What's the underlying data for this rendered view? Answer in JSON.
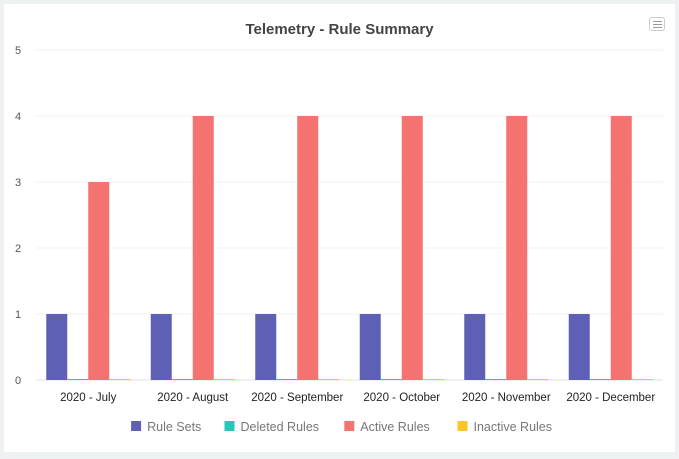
{
  "chart_data": {
    "type": "bar",
    "title": "Telemetry - Rule Summary",
    "categories": [
      "2020 - July",
      "2020 - August",
      "2020 - September",
      "2020 - October",
      "2020 - November",
      "2020 - December"
    ],
    "series": [
      {
        "name": "Rule Sets",
        "color": "#5e60b5",
        "values": [
          1,
          1,
          1,
          1,
          1,
          1
        ]
      },
      {
        "name": "Deleted Rules",
        "color": "#26c6bb",
        "values": [
          0,
          0,
          0,
          0,
          0,
          0
        ]
      },
      {
        "name": "Active Rules",
        "color": "#f47371",
        "values": [
          3,
          4,
          4,
          4,
          4,
          4
        ]
      },
      {
        "name": "Inactive Rules",
        "color": "#fdc42a",
        "values": [
          0,
          0,
          0,
          0,
          0,
          0
        ]
      }
    ],
    "yticks": [
      0,
      1,
      2,
      3,
      4,
      5
    ],
    "ylim": [
      0,
      5
    ],
    "grid": true,
    "legend": "bottom"
  },
  "menu_icon": "hamburger-menu-icon"
}
